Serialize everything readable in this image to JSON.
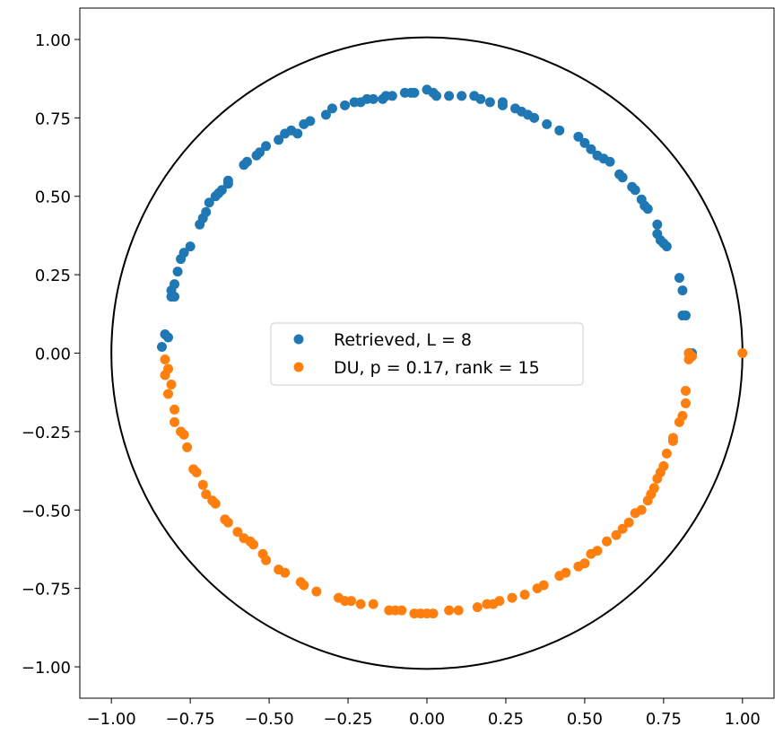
{
  "chart_data": {
    "type": "scatter",
    "title": "",
    "xlabel": "",
    "ylabel": "",
    "xlim": [
      -1.1,
      1.1
    ],
    "ylim": [
      -1.1,
      1.1
    ],
    "xticks": [
      -1.0,
      -0.75,
      -0.5,
      -0.25,
      0.0,
      0.25,
      0.5,
      0.75,
      1.0
    ],
    "xtick_labels": [
      "−1.00",
      "−0.75",
      "−0.50",
      "−0.25",
      "0.00",
      "0.25",
      "0.50",
      "0.75",
      "1.00"
    ],
    "yticks": [
      1.0,
      0.75,
      0.5,
      0.25,
      0.0,
      -0.25,
      -0.5,
      -0.75,
      -1.0
    ],
    "ytick_labels": [
      "1.00",
      "0.75",
      "0.50",
      "0.25",
      "0.00",
      "−0.25",
      "−0.50",
      "−0.75",
      "−1.00"
    ],
    "grid": false,
    "legend_position": "center",
    "reference_circle": {
      "radius": 1.0,
      "color": "#000000"
    },
    "series": [
      {
        "name": "Retrieved, L = 8",
        "color": "#1f77b4",
        "points": [
          [
            -0.83,
            0.06
          ],
          [
            -0.84,
            0.02
          ],
          [
            -0.82,
            0.05
          ],
          [
            -0.81,
            0.18
          ],
          [
            -0.81,
            0.2
          ],
          [
            -0.8,
            0.22
          ],
          [
            -0.8,
            0.18
          ],
          [
            -0.79,
            0.26
          ],
          [
            -0.78,
            0.3
          ],
          [
            -0.77,
            0.32
          ],
          [
            -0.75,
            0.34
          ],
          [
            -0.72,
            0.41
          ],
          [
            -0.71,
            0.43
          ],
          [
            -0.7,
            0.45
          ],
          [
            -0.69,
            0.48
          ],
          [
            -0.67,
            0.5
          ],
          [
            -0.66,
            0.51
          ],
          [
            -0.65,
            0.52
          ],
          [
            -0.63,
            0.54
          ],
          [
            -0.63,
            0.55
          ],
          [
            -0.58,
            0.6
          ],
          [
            -0.57,
            0.61
          ],
          [
            -0.54,
            0.63
          ],
          [
            -0.53,
            0.64
          ],
          [
            -0.51,
            0.66
          ],
          [
            -0.47,
            0.68
          ],
          [
            -0.45,
            0.7
          ],
          [
            -0.43,
            0.71
          ],
          [
            -0.41,
            0.7
          ],
          [
            -0.39,
            0.73
          ],
          [
            -0.37,
            0.74
          ],
          [
            -0.32,
            0.76
          ],
          [
            -0.3,
            0.78
          ],
          [
            -0.26,
            0.79
          ],
          [
            -0.23,
            0.8
          ],
          [
            -0.21,
            0.8
          ],
          [
            -0.19,
            0.81
          ],
          [
            -0.17,
            0.81
          ],
          [
            -0.14,
            0.81
          ],
          [
            -0.13,
            0.82
          ],
          [
            -0.11,
            0.82
          ],
          [
            -0.07,
            0.83
          ],
          [
            -0.05,
            0.83
          ],
          [
            -0.04,
            0.83
          ],
          [
            0.0,
            0.84
          ],
          [
            0.02,
            0.83
          ],
          [
            0.03,
            0.82
          ],
          [
            0.07,
            0.82
          ],
          [
            0.11,
            0.82
          ],
          [
            0.15,
            0.82
          ],
          [
            0.17,
            0.81
          ],
          [
            0.2,
            0.8
          ],
          [
            0.24,
            0.8
          ],
          [
            0.24,
            0.79
          ],
          [
            0.28,
            0.78
          ],
          [
            0.3,
            0.77
          ],
          [
            0.32,
            0.76
          ],
          [
            0.34,
            0.75
          ],
          [
            0.38,
            0.73
          ],
          [
            0.42,
            0.71
          ],
          [
            0.48,
            0.69
          ],
          [
            0.5,
            0.67
          ],
          [
            0.52,
            0.65
          ],
          [
            0.54,
            0.63
          ],
          [
            0.56,
            0.62
          ],
          [
            0.58,
            0.61
          ],
          [
            0.61,
            0.57
          ],
          [
            0.62,
            0.56
          ],
          [
            0.65,
            0.53
          ],
          [
            0.66,
            0.52
          ],
          [
            0.68,
            0.49
          ],
          [
            0.69,
            0.47
          ],
          [
            0.7,
            0.46
          ],
          [
            0.73,
            0.41
          ],
          [
            0.73,
            0.38
          ],
          [
            0.74,
            0.36
          ],
          [
            0.75,
            0.35
          ],
          [
            0.76,
            0.34
          ],
          [
            0.8,
            0.24
          ],
          [
            0.81,
            0.2
          ],
          [
            0.82,
            0.12
          ],
          [
            0.81,
            0.12
          ],
          [
            0.83,
            0.0
          ],
          [
            0.84,
            0.0
          ]
        ]
      },
      {
        "name": "DU, p = 0.17, rank = 15",
        "color": "#ff7f0e",
        "points": [
          [
            -0.83,
            -0.02
          ],
          [
            -0.82,
            -0.05
          ],
          [
            -0.83,
            -0.07
          ],
          [
            -0.81,
            -0.1
          ],
          [
            -0.82,
            -0.13
          ],
          [
            -0.8,
            -0.18
          ],
          [
            -0.8,
            -0.22
          ],
          [
            -0.78,
            -0.25
          ],
          [
            -0.77,
            -0.26
          ],
          [
            -0.76,
            -0.3
          ],
          [
            -0.74,
            -0.37
          ],
          [
            -0.73,
            -0.38
          ],
          [
            -0.71,
            -0.42
          ],
          [
            -0.7,
            -0.45
          ],
          [
            -0.68,
            -0.47
          ],
          [
            -0.67,
            -0.48
          ],
          [
            -0.64,
            -0.53
          ],
          [
            -0.63,
            -0.54
          ],
          [
            -0.6,
            -0.57
          ],
          [
            -0.58,
            -0.59
          ],
          [
            -0.56,
            -0.6
          ],
          [
            -0.55,
            -0.61
          ],
          [
            -0.52,
            -0.64
          ],
          [
            -0.51,
            -0.66
          ],
          [
            -0.47,
            -0.69
          ],
          [
            -0.45,
            -0.7
          ],
          [
            -0.4,
            -0.73
          ],
          [
            -0.39,
            -0.74
          ],
          [
            -0.35,
            -0.76
          ],
          [
            -0.28,
            -0.78
          ],
          [
            -0.26,
            -0.79
          ],
          [
            -0.24,
            -0.79
          ],
          [
            -0.21,
            -0.8
          ],
          [
            -0.17,
            -0.8
          ],
          [
            -0.12,
            -0.82
          ],
          [
            -0.1,
            -0.82
          ],
          [
            -0.08,
            -0.82
          ],
          [
            -0.04,
            -0.83
          ],
          [
            -0.02,
            -0.83
          ],
          [
            0.0,
            -0.83
          ],
          [
            0.02,
            -0.83
          ],
          [
            0.07,
            -0.82
          ],
          [
            0.1,
            -0.82
          ],
          [
            0.16,
            -0.81
          ],
          [
            0.19,
            -0.8
          ],
          [
            0.21,
            -0.8
          ],
          [
            0.23,
            -0.79
          ],
          [
            0.27,
            -0.78
          ],
          [
            0.31,
            -0.77
          ],
          [
            0.35,
            -0.75
          ],
          [
            0.37,
            -0.74
          ],
          [
            0.42,
            -0.71
          ],
          [
            0.44,
            -0.7
          ],
          [
            0.48,
            -0.68
          ],
          [
            0.5,
            -0.67
          ],
          [
            0.52,
            -0.64
          ],
          [
            0.54,
            -0.63
          ],
          [
            0.57,
            -0.6
          ],
          [
            0.6,
            -0.58
          ],
          [
            0.62,
            -0.56
          ],
          [
            0.64,
            -0.54
          ],
          [
            0.66,
            -0.51
          ],
          [
            0.68,
            -0.5
          ],
          [
            0.7,
            -0.47
          ],
          [
            0.71,
            -0.45
          ],
          [
            0.72,
            -0.43
          ],
          [
            0.73,
            -0.4
          ],
          [
            0.74,
            -0.38
          ],
          [
            0.75,
            -0.36
          ],
          [
            0.76,
            -0.32
          ],
          [
            0.78,
            -0.28
          ],
          [
            0.78,
            -0.27
          ],
          [
            0.8,
            -0.22
          ],
          [
            0.81,
            -0.2
          ],
          [
            0.82,
            -0.16
          ],
          [
            0.82,
            -0.12
          ],
          [
            0.83,
            -0.02
          ],
          [
            0.84,
            -0.01
          ],
          [
            0.83,
            0.0
          ],
          [
            1.0,
            0.0
          ]
        ]
      }
    ]
  }
}
